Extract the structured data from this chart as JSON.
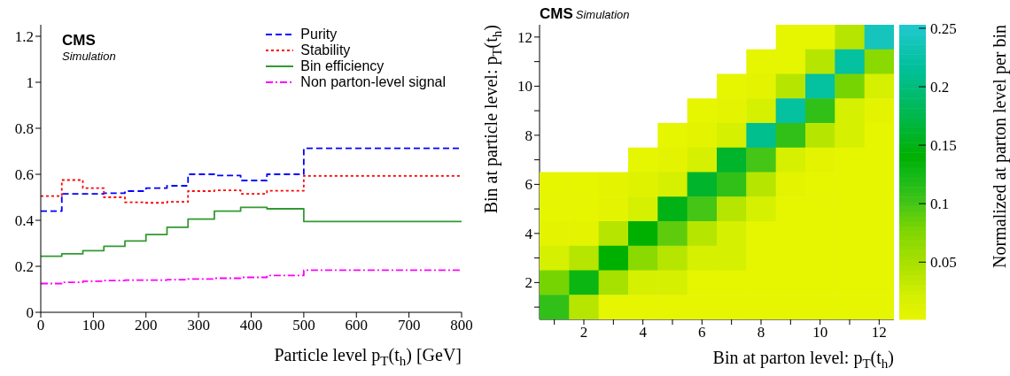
{
  "chart_data": [
    {
      "type": "histogram",
      "title": "CMS",
      "subtitle": "Simulation",
      "xlabel": "Particle level p$_{T}$(t$_{h}$) [GeV]",
      "xlim": [
        0,
        800
      ],
      "xticks": [
        0,
        100,
        200,
        300,
        400,
        500,
        600,
        700,
        800
      ],
      "ylim": [
        0,
        1.25
      ],
      "yticks": [
        0,
        0.2,
        0.4,
        0.6,
        0.8,
        1,
        1.2
      ],
      "legend": "top right",
      "bins": [
        0,
        40,
        80,
        120,
        160,
        200,
        240,
        280,
        330,
        380,
        430,
        500,
        800
      ],
      "series": [
        {
          "name": "Purity",
          "color": "#0000ff",
          "line_style": "dashed",
          "values": [
            0.44,
            0.515,
            0.515,
            0.518,
            0.527,
            0.54,
            0.55,
            0.6,
            0.595,
            0.573,
            0.6,
            0.713
          ]
        },
        {
          "name": "Stability",
          "color": "#ff0000",
          "line_style": "dotted",
          "values": [
            0.505,
            0.575,
            0.54,
            0.5,
            0.478,
            0.476,
            0.48,
            0.527,
            0.53,
            0.515,
            0.528,
            0.593
          ]
        },
        {
          "name": "Bin efficiency",
          "color": "#339933",
          "line_style": "solid",
          "values": [
            0.244,
            0.254,
            0.268,
            0.287,
            0.31,
            0.338,
            0.37,
            0.405,
            0.44,
            0.456,
            0.45,
            0.395
          ]
        },
        {
          "name": "Non parton-level signal",
          "color": "#ff00ff",
          "line_style": "dashdot",
          "values": [
            0.125,
            0.13,
            0.135,
            0.138,
            0.14,
            0.14,
            0.142,
            0.145,
            0.148,
            0.152,
            0.16,
            0.183
          ]
        }
      ]
    },
    {
      "type": "heatmap",
      "title": "CMS",
      "subtitle": "Simulation",
      "xlabel": "Bin at parton level: p$_{T}$(t$_{h}$)",
      "ylabel": "Bin at particle level: p$_{T}$(t$_{h}$)",
      "clabel": "Normalized at parton level per bin",
      "categories": [
        null,
        "2",
        null,
        "4",
        null,
        "6",
        null,
        "8",
        null,
        "10",
        null,
        "12"
      ],
      "y_categories": [
        "12",
        null,
        "10",
        null,
        "8",
        null,
        "6",
        null,
        "4",
        null,
        "2",
        null
      ],
      "clim": [
        0.001,
        0.253
      ],
      "cticks": [
        0.05,
        0.1,
        0.15,
        0.2,
        0.25
      ],
      "cells": [
        [
          null,
          null,
          null,
          null,
          null,
          null,
          null,
          null,
          0.003,
          0.003,
          0.04,
          0.24
        ],
        [
          null,
          null,
          null,
          null,
          null,
          null,
          null,
          0.003,
          0.003,
          0.04,
          0.22,
          0.07
        ],
        [
          null,
          null,
          null,
          null,
          null,
          null,
          0.003,
          0.005,
          0.04,
          0.22,
          0.08,
          0.02
        ],
        [
          null,
          null,
          null,
          null,
          null,
          0.003,
          0.005,
          0.02,
          0.22,
          0.11,
          0.02,
          0.005
        ],
        [
          null,
          null,
          null,
          null,
          0.003,
          0.005,
          0.02,
          0.21,
          0.11,
          0.04,
          0.02,
          0.003
        ],
        [
          null,
          null,
          null,
          0.003,
          0.005,
          0.02,
          0.16,
          0.1,
          0.02,
          0.005,
          0.003,
          0.003
        ],
        [
          0.003,
          0.003,
          0.005,
          0.01,
          0.02,
          0.16,
          0.11,
          0.04,
          0.005,
          0.003,
          0.003,
          0.003
        ],
        [
          0.003,
          0.003,
          0.005,
          0.02,
          0.15,
          0.1,
          0.04,
          0.02,
          0.003,
          0.003,
          0.003,
          0.003
        ],
        [
          0.005,
          0.005,
          0.04,
          0.14,
          0.09,
          0.04,
          0.02,
          0.003,
          0.003,
          0.003,
          0.003,
          0.003
        ],
        [
          0.02,
          0.04,
          0.14,
          0.07,
          0.04,
          0.02,
          0.02,
          0.003,
          0.003,
          0.003,
          0.003,
          0.003
        ],
        [
          0.08,
          0.13,
          0.05,
          0.02,
          0.02,
          0.003,
          0.003,
          0.003,
          0.003,
          0.003,
          0.003,
          0.003
        ],
        [
          0.11,
          0.04,
          0.003,
          0.003,
          0.003,
          0.003,
          0.003,
          0.003,
          0.003,
          0.003,
          0.003,
          0.003
        ]
      ]
    }
  ]
}
